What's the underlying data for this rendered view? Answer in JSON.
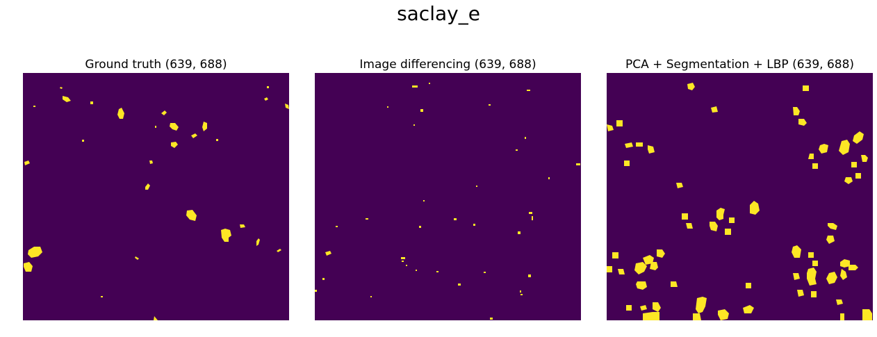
{
  "figure": {
    "title": "saclay_e"
  },
  "panels": [
    {
      "title": "Ground truth (639, 688)"
    },
    {
      "title": "Image differencing (639, 688)"
    },
    {
      "title": "PCA + Segmentation + LBP (639, 688)"
    }
  ],
  "colors": {
    "background": "#440154",
    "change": "#fde725"
  }
}
